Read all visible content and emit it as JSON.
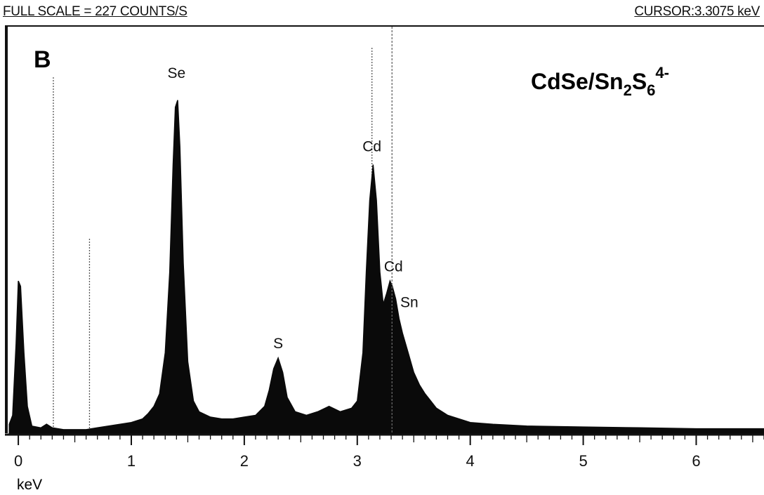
{
  "header": {
    "full_scale": "FULL SCALE = 227 COUNTS/S",
    "cursor": "CURSOR:3.3075 keV"
  },
  "chart_data": {
    "type": "area",
    "panel_label": "B",
    "sample_label": "CdSe/Sn2S64-",
    "xlabel": "keV",
    "ylabel": "",
    "xlim": [
      -0.1,
      6.6
    ],
    "ylim": [
      0,
      227
    ],
    "x_ticks": [
      0,
      1,
      2,
      3,
      4,
      5,
      6
    ],
    "x_tick_labels": [
      "0",
      "1",
      "2",
      "3",
      "4",
      "5",
      "6"
    ],
    "cursor_kev": 3.3075,
    "marker_lines_kev": [
      0.31,
      0.63,
      3.13
    ],
    "peak_labels": [
      {
        "text": "Se",
        "x": 1.4,
        "y": 196
      },
      {
        "text": "S",
        "x": 2.3,
        "y": 45
      },
      {
        "text": "Cd",
        "x": 3.13,
        "y": 155
      },
      {
        "text": "Cd",
        "x": 3.32,
        "y": 88
      },
      {
        "text": "Sn",
        "x": 3.46,
        "y": 68
      }
    ],
    "series": [
      {
        "values": [
          [
            -0.08,
            5
          ],
          [
            -0.05,
            10
          ],
          [
            -0.02,
            50
          ],
          [
            0.0,
            85
          ],
          [
            0.02,
            82
          ],
          [
            0.05,
            45
          ],
          [
            0.08,
            15
          ],
          [
            0.12,
            4
          ],
          [
            0.2,
            3
          ],
          [
            0.25,
            5
          ],
          [
            0.3,
            3
          ],
          [
            0.4,
            2
          ],
          [
            0.5,
            2
          ],
          [
            0.6,
            2
          ],
          [
            0.7,
            3
          ],
          [
            0.8,
            4
          ],
          [
            0.9,
            5
          ],
          [
            1.0,
            6
          ],
          [
            1.1,
            8
          ],
          [
            1.15,
            11
          ],
          [
            1.2,
            15
          ],
          [
            1.25,
            22
          ],
          [
            1.3,
            45
          ],
          [
            1.34,
            90
          ],
          [
            1.37,
            150
          ],
          [
            1.39,
            182
          ],
          [
            1.41,
            186
          ],
          [
            1.43,
            160
          ],
          [
            1.46,
            95
          ],
          [
            1.5,
            40
          ],
          [
            1.55,
            18
          ],
          [
            1.6,
            12
          ],
          [
            1.7,
            9
          ],
          [
            1.8,
            8
          ],
          [
            1.9,
            8
          ],
          [
            2.0,
            9
          ],
          [
            2.1,
            10
          ],
          [
            2.18,
            15
          ],
          [
            2.22,
            24
          ],
          [
            2.26,
            36
          ],
          [
            2.3,
            42
          ],
          [
            2.34,
            34
          ],
          [
            2.38,
            20
          ],
          [
            2.45,
            12
          ],
          [
            2.55,
            10
          ],
          [
            2.65,
            12
          ],
          [
            2.75,
            15
          ],
          [
            2.85,
            12
          ],
          [
            2.95,
            14
          ],
          [
            3.0,
            18
          ],
          [
            3.05,
            45
          ],
          [
            3.08,
            90
          ],
          [
            3.11,
            130
          ],
          [
            3.14,
            150
          ],
          [
            3.17,
            130
          ],
          [
            3.2,
            90
          ],
          [
            3.23,
            72
          ],
          [
            3.26,
            78
          ],
          [
            3.29,
            85
          ],
          [
            3.31,
            82
          ],
          [
            3.34,
            75
          ],
          [
            3.37,
            64
          ],
          [
            3.4,
            56
          ],
          [
            3.45,
            45
          ],
          [
            3.5,
            34
          ],
          [
            3.55,
            27
          ],
          [
            3.6,
            22
          ],
          [
            3.65,
            18
          ],
          [
            3.7,
            14
          ],
          [
            3.8,
            10
          ],
          [
            3.9,
            8
          ],
          [
            4.0,
            6
          ],
          [
            4.2,
            5
          ],
          [
            4.5,
            4
          ],
          [
            5.0,
            3.5
          ],
          [
            5.5,
            3
          ],
          [
            6.0,
            2.5
          ],
          [
            6.6,
            2.5
          ]
        ]
      }
    ]
  },
  "colors": {
    "spectrum": "#0a0a0a",
    "axis": "#111111",
    "marker_line": "#555555",
    "background": "#ffffff"
  }
}
